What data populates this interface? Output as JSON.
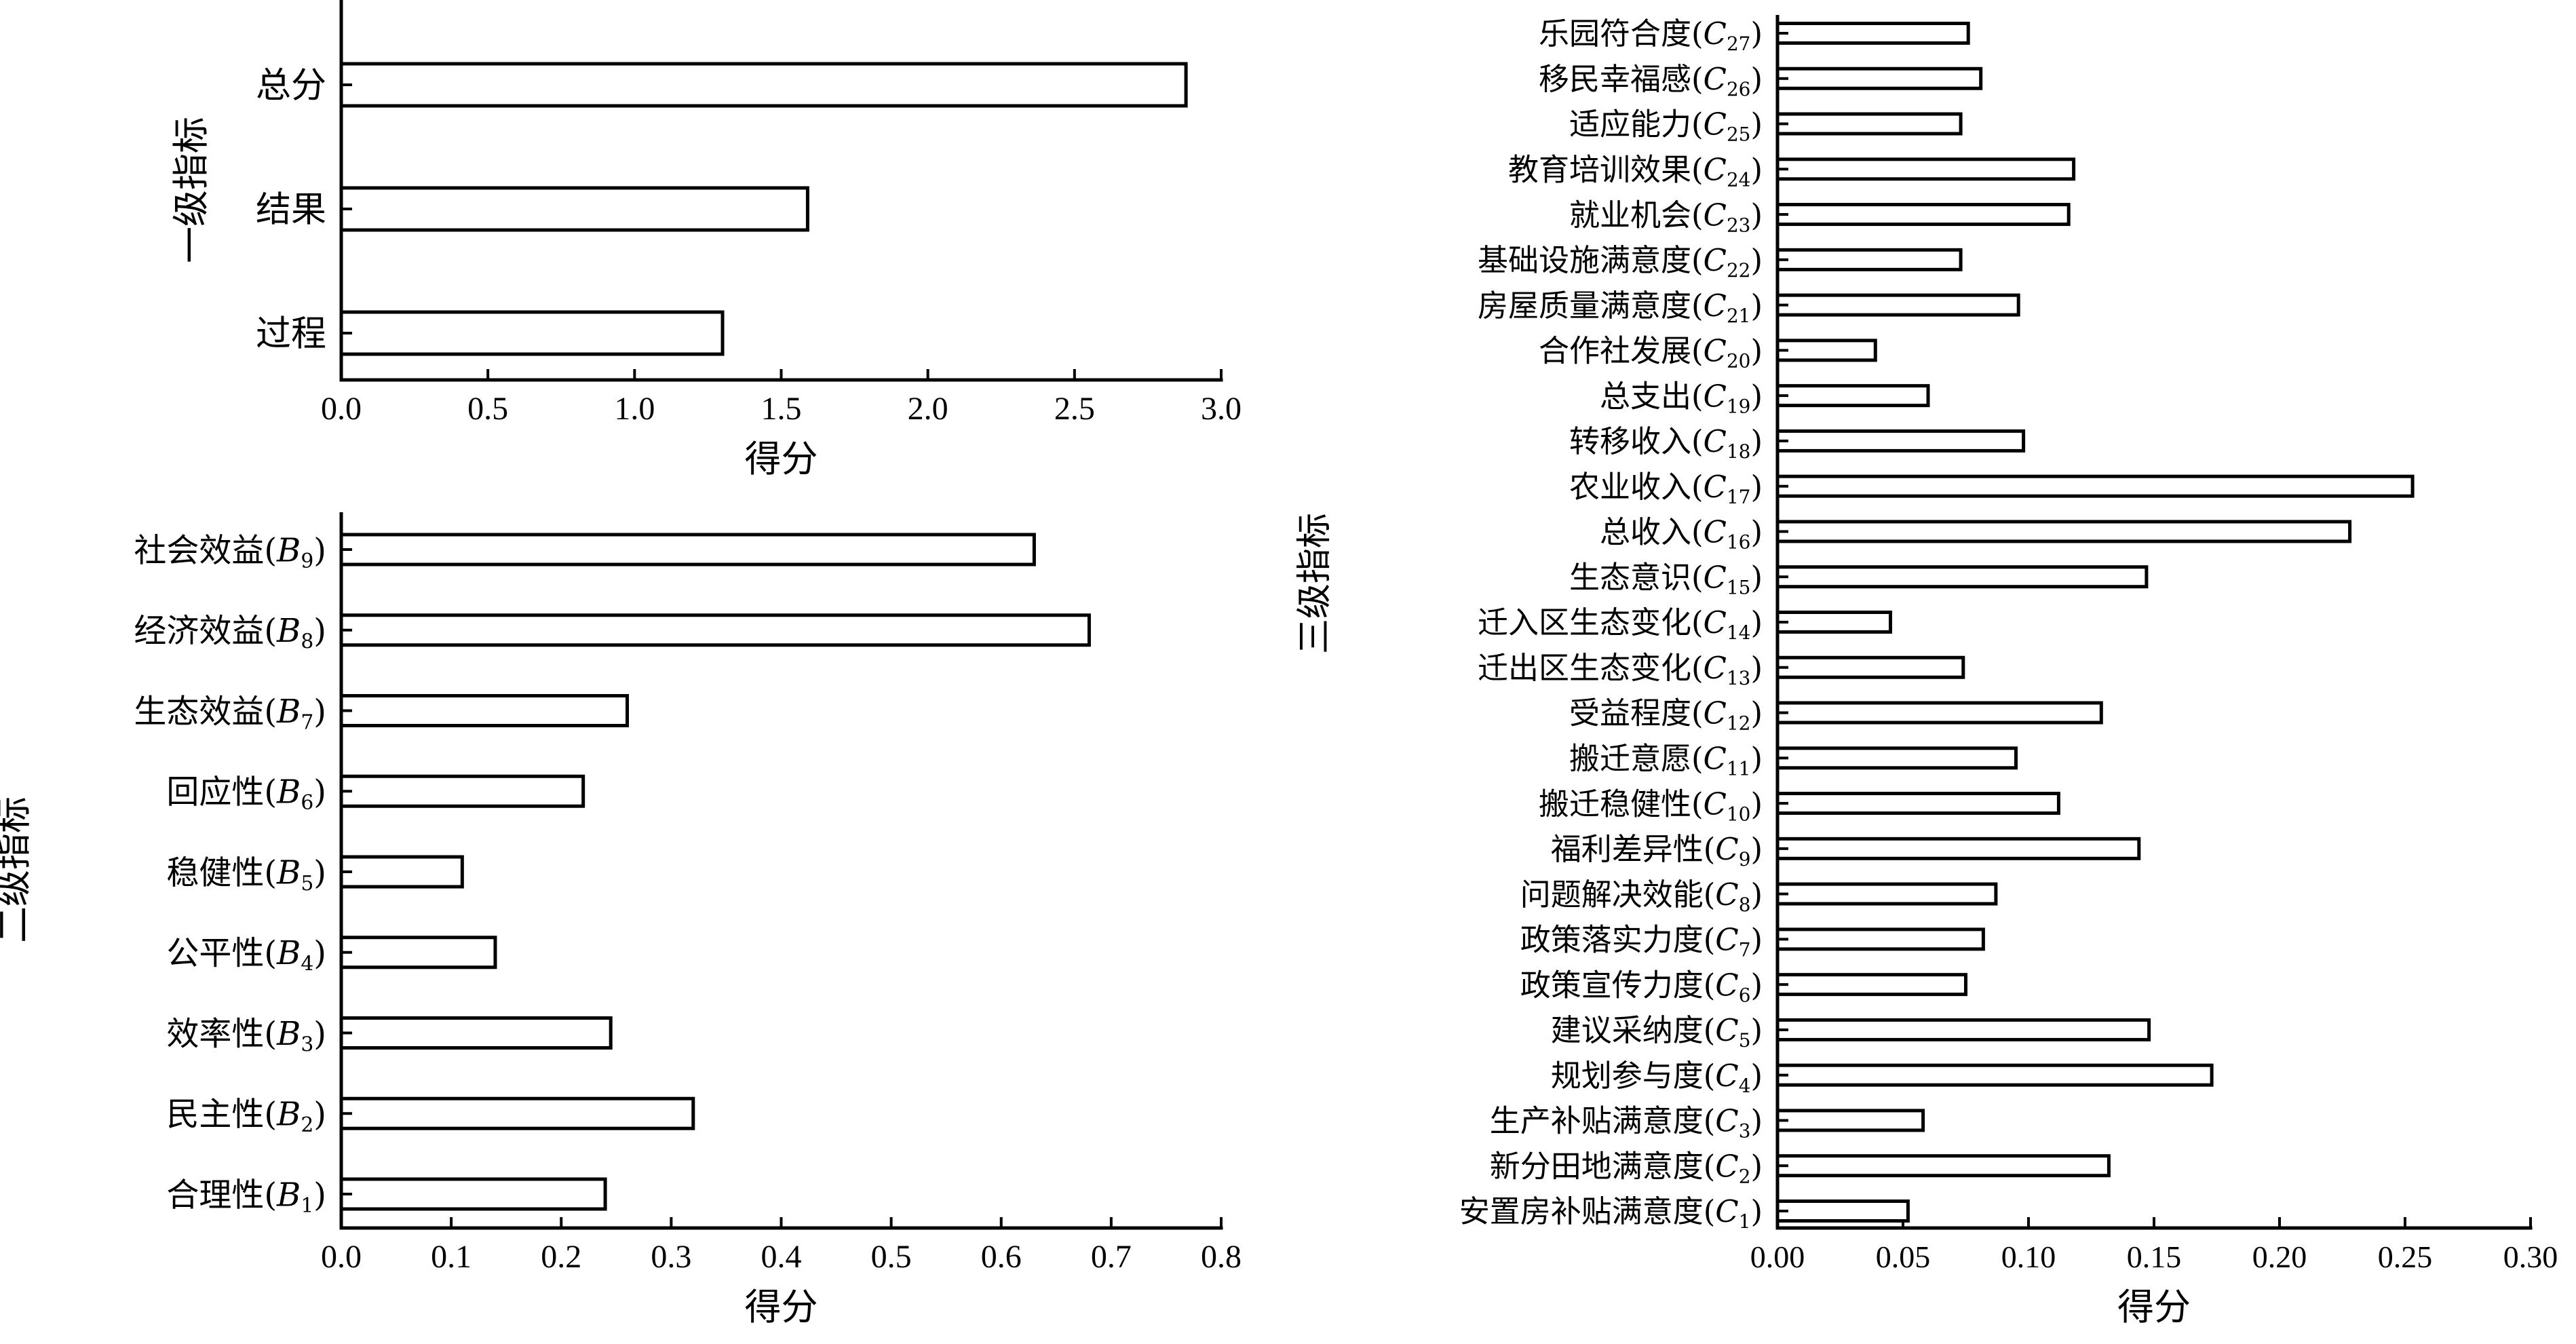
{
  "chart_data": [
    {
      "type": "bar",
      "orientation": "horizontal",
      "categories": [
        "过程",
        "结果",
        "总分"
      ],
      "values": [
        1.3,
        1.59,
        2.88
      ],
      "title": "",
      "xlabel": "得分",
      "ylabel": "一级指标",
      "xlim": [
        0,
        3.0
      ],
      "xticks": [
        "0.0",
        "0.5",
        "1.0",
        "1.5",
        "2.0",
        "2.5",
        "3.0"
      ],
      "grid": false
    },
    {
      "type": "bar",
      "orientation": "horizontal",
      "categories": [
        {
          "label": "合理性(",
          "var": "B",
          "sub": "1"
        },
        {
          "label": "民主性(",
          "var": "B",
          "sub": "2"
        },
        {
          "label": "效率性(",
          "var": "B",
          "sub": "3"
        },
        {
          "label": "公平性(",
          "var": "B",
          "sub": "4"
        },
        {
          "label": "稳健性(",
          "var": "B",
          "sub": "5"
        },
        {
          "label": "回应性(",
          "var": "B",
          "sub": "6"
        },
        {
          "label": "生态效益(",
          "var": "B",
          "sub": "7"
        },
        {
          "label": "经济效益(",
          "var": "B",
          "sub": "8"
        },
        {
          "label": "社会效益(",
          "var": "B",
          "sub": "9"
        }
      ],
      "values": [
        0.24,
        0.32,
        0.245,
        0.14,
        0.11,
        0.22,
        0.26,
        0.68,
        0.63
      ],
      "title": "",
      "xlabel": "得分",
      "ylabel": "二级指标",
      "xlim": [
        0,
        0.8
      ],
      "xticks": [
        "0.0",
        "0.1",
        "0.2",
        "0.3",
        "0.4",
        "0.5",
        "0.6",
        "0.7",
        "0.8"
      ],
      "grid": false
    },
    {
      "type": "bar",
      "orientation": "horizontal",
      "categories": [
        {
          "label": "安置房补贴满意度(",
          "var": "C",
          "sub": "1"
        },
        {
          "label": "新分田地满意度(",
          "var": "C",
          "sub": "2"
        },
        {
          "label": "生产补贴满意度(",
          "var": "C",
          "sub": "3"
        },
        {
          "label": "规划参与度(",
          "var": "C",
          "sub": "4"
        },
        {
          "label": "建议采纳度(",
          "var": "C",
          "sub": "5"
        },
        {
          "label": "政策宣传力度(",
          "var": "C",
          "sub": "6"
        },
        {
          "label": "政策落实力度(",
          "var": "C",
          "sub": "7"
        },
        {
          "label": "问题解决效能(",
          "var": "C",
          "sub": "8"
        },
        {
          "label": "福利差异性(",
          "var": "C",
          "sub": "9"
        },
        {
          "label": "搬迁稳健性(",
          "var": "C",
          "sub": "10"
        },
        {
          "label": "搬迁意愿(",
          "var": "C",
          "sub": "11"
        },
        {
          "label": "受益程度(",
          "var": "C",
          "sub": "12"
        },
        {
          "label": "迁出区生态变化(",
          "var": "C",
          "sub": "13"
        },
        {
          "label": "迁入区生态变化(",
          "var": "C",
          "sub": "14"
        },
        {
          "label": "生态意识(",
          "var": "C",
          "sub": "15"
        },
        {
          "label": "总收入(",
          "var": "C",
          "sub": "16"
        },
        {
          "label": "农业收入(",
          "var": "C",
          "sub": "17"
        },
        {
          "label": "转移收入(",
          "var": "C",
          "sub": "18"
        },
        {
          "label": "总支出(",
          "var": "C",
          "sub": "19"
        },
        {
          "label": "合作社发展(",
          "var": "C",
          "sub": "20"
        },
        {
          "label": "房屋质量满意度(",
          "var": "C",
          "sub": "21"
        },
        {
          "label": "基础设施满意度(",
          "var": "C",
          "sub": "22"
        },
        {
          "label": "就业机会(",
          "var": "C",
          "sub": "23"
        },
        {
          "label": "教育培训效果(",
          "var": "C",
          "sub": "24"
        },
        {
          "label": "适应能力(",
          "var": "C",
          "sub": "25"
        },
        {
          "label": "移民幸福感(",
          "var": "C",
          "sub": "26"
        },
        {
          "label": "乐园符合度(",
          "var": "C",
          "sub": "27"
        }
      ],
      "values": [
        0.052,
        0.132,
        0.058,
        0.173,
        0.148,
        0.075,
        0.082,
        0.087,
        0.144,
        0.112,
        0.095,
        0.129,
        0.074,
        0.045,
        0.147,
        0.228,
        0.253,
        0.098,
        0.06,
        0.039,
        0.096,
        0.073,
        0.116,
        0.118,
        0.073,
        0.081,
        0.076
      ],
      "title": "",
      "xlabel": "得分",
      "ylabel": "三级指标",
      "xlim": [
        0,
        0.3
      ],
      "xticks": [
        "0.00",
        "0.05",
        "0.10",
        "0.15",
        "0.20",
        "0.25",
        "0.30"
      ],
      "grid": false
    }
  ]
}
